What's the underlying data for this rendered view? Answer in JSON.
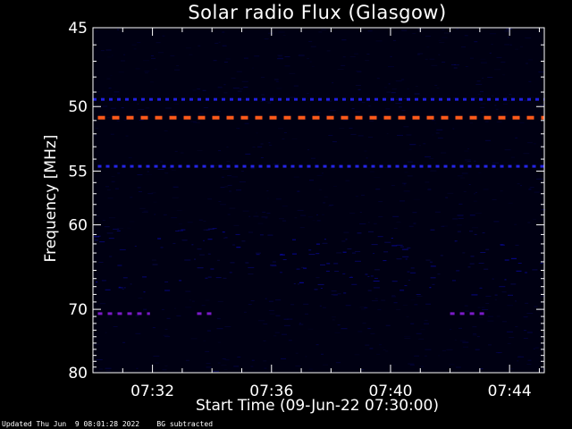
{
  "chart_data": {
    "type": "heatmap",
    "title": "Solar radio Flux (Glasgow)",
    "xlabel": "Start Time (09-Jun-22 07:30:00)",
    "ylabel": "Frequency [MHz]",
    "x_range": [
      "07:30:00",
      "07:45:10"
    ],
    "y_range": [
      45,
      80
    ],
    "y_scale": "reciprocal",
    "x_ticks": [
      "07:32",
      "07:36",
      "07:40",
      "07:44"
    ],
    "y_ticks": [
      45,
      50,
      55,
      60,
      70,
      80
    ],
    "background_subtracted": true,
    "emission_features": [
      {
        "frequency_mhz": 50.8,
        "start": "07:30:10",
        "end": "07:45:10",
        "intensity": "high",
        "color": "#ff5a1a"
      },
      {
        "frequency_mhz": 49.5,
        "start": "07:30:00",
        "end": "07:45:10",
        "intensity": "low",
        "color": "#2020e0"
      },
      {
        "frequency_mhz": 54.6,
        "start": "07:30:10",
        "end": "07:45:10",
        "intensity": "low",
        "color": "#2424e6"
      },
      {
        "frequency_mhz": 70.6,
        "start": "07:30:10",
        "end": "07:31:55",
        "intensity": "medium",
        "color": "#7a1ac8"
      },
      {
        "frequency_mhz": 70.6,
        "start": "07:33:30",
        "end": "07:34:00",
        "intensity": "medium",
        "color": "#7a1ac8"
      },
      {
        "frequency_mhz": 70.6,
        "start": "07:42:00",
        "end": "07:43:10",
        "intensity": "medium",
        "color": "#7a1ac8"
      }
    ]
  },
  "footer": {
    "updated": "Updated Thu Jun  9 08:01:28 2022",
    "note": "BG subtracted"
  }
}
